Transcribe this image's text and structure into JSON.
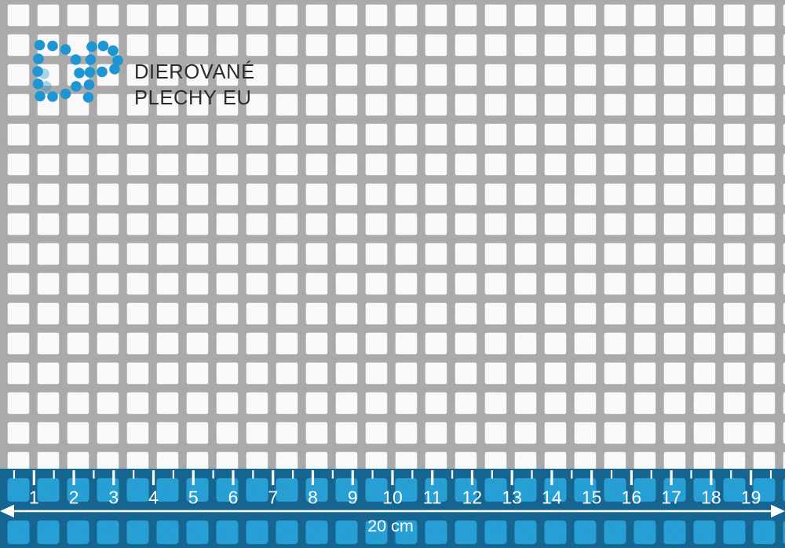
{
  "brand": {
    "line1": "DIEROVANÉ",
    "line2": "PLECHY EU",
    "dot_color": "#1f96d3",
    "text_color": "#2b2b2b",
    "dot_radius": 6.8,
    "dots_d": [
      [
        50.5,
        57.5
      ],
      [
        67,
        58.5
      ],
      [
        83.5,
        63
      ],
      [
        49,
        75
      ],
      [
        48,
        91
      ],
      [
        48.5,
        107
      ],
      [
        51,
        122.5
      ],
      [
        67,
        123
      ],
      [
        83.5,
        119.5
      ],
      [
        96.5,
        76
      ],
      [
        101,
        93
      ],
      [
        97,
        110
      ]
    ],
    "dots_p": [
      [
        117,
        59.5
      ],
      [
        115.5,
        76
      ],
      [
        114.5,
        92
      ],
      [
        113.5,
        108
      ],
      [
        112.5,
        124
      ],
      [
        131.5,
        58.5
      ],
      [
        144,
        64.5
      ],
      [
        150,
        77
      ],
      [
        146,
        88
      ],
      [
        130,
        91.5
      ]
    ],
    "dots_light": [
      [
        56,
        94
      ],
      [
        59,
        110
      ]
    ]
  },
  "sheet": {
    "metal_color": "#a9a9a9",
    "hole_color": "#fcfcfc"
  },
  "ruler": {
    "unit": "cm",
    "numbers": [
      "1",
      "2",
      "3",
      "4",
      "5",
      "6",
      "7",
      "8",
      "9",
      "10",
      "11",
      "12",
      "13",
      "14",
      "15",
      "16",
      "17",
      "18",
      "19"
    ],
    "label": "20 cm",
    "band_color": "#0f628f",
    "square_color": "#219ed6",
    "tick_color": "#ffffff",
    "first_tick_x": 43.3,
    "tick_spacing": 50.74,
    "minor_count": 20
  }
}
